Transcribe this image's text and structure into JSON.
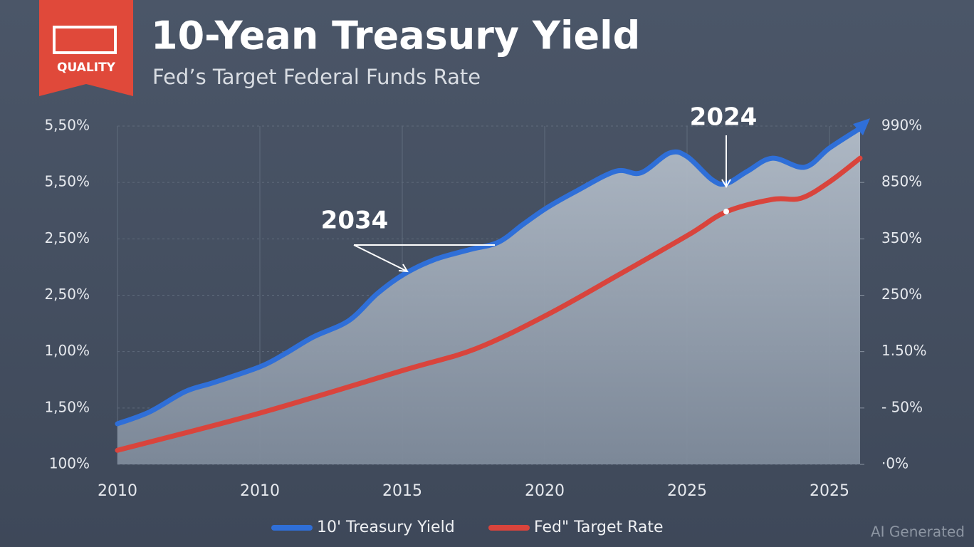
{
  "chart_data": {
    "type": "line",
    "badge": "QUALITY",
    "title": "10-Yean Treasury Yield",
    "subtitle": "Fed’s Target Federal Funds Rate",
    "watermark": "AI Generated",
    "annotations": [
      {
        "text": "2034"
      },
      {
        "text": "2024"
      }
    ],
    "xlim": [
      0,
      5.215
    ],
    "xticks": [
      {
        "value": 0,
        "label": "2010"
      },
      {
        "value": 1,
        "label": "2010"
      },
      {
        "value": 2,
        "label": "2015"
      },
      {
        "value": 3,
        "label": "2020"
      },
      {
        "value": 4,
        "label": "2025"
      },
      {
        "value": 5,
        "label": "2025"
      }
    ],
    "ylim": [
      0,
      6
    ],
    "yticks": [
      {
        "value": 6,
        "label": "5,50%"
      },
      {
        "value": 5,
        "label": "5,50%"
      },
      {
        "value": 4,
        "label": "2,50%"
      },
      {
        "value": 3,
        "label": "2,50%"
      },
      {
        "value": 2,
        "label": "1,00%"
      },
      {
        "value": 1,
        "label": "1,50%"
      },
      {
        "value": 0,
        "label": "100%"
      }
    ],
    "y2lim": [
      0,
      6
    ],
    "y2ticks": [
      {
        "value": 6,
        "label": "990%"
      },
      {
        "value": 5,
        "label": "850%"
      },
      {
        "value": 4,
        "label": "350%"
      },
      {
        "value": 3,
        "label": "250%"
      },
      {
        "value": 2,
        "label": "1.50%"
      },
      {
        "value": 1,
        "label": "- 50%"
      },
      {
        "value": 0,
        "label": "·0%"
      }
    ],
    "grid": true,
    "series": [
      {
        "name": "10' Treasury Yield",
        "color": "#2f6fd8",
        "area": true,
        "x": [
          0,
          0.225,
          0.475,
          0.675,
          1.0,
          1.175,
          1.375,
          1.625,
          1.825,
          2.01,
          2.225,
          2.475,
          2.675,
          2.85,
          3.015,
          3.225,
          3.5,
          3.675,
          3.875,
          4.0,
          4.175,
          4.275,
          4.425,
          4.6,
          4.825,
          5.0,
          5.215
        ],
        "values": [
          0.72,
          0.93,
          1.29,
          1.45,
          1.73,
          1.96,
          2.26,
          2.55,
          3.03,
          3.37,
          3.63,
          3.81,
          3.94,
          4.26,
          4.55,
          4.85,
          5.2,
          5.17,
          5.52,
          5.46,
          5.05,
          4.98,
          5.2,
          5.43,
          5.27,
          5.61,
          5.96
        ]
      },
      {
        "name": "Fed\" Target Rate",
        "color": "#d9443c",
        "x": [
          0,
          1,
          2.01,
          2.515,
          3.015,
          3.525,
          4.01,
          4.275,
          4.6,
          4.8,
          5.0,
          5.215
        ],
        "values": [
          0.25,
          0.91,
          1.67,
          2.05,
          2.65,
          3.37,
          4.07,
          4.48,
          4.7,
          4.72,
          5.01,
          5.43
        ]
      }
    ]
  }
}
